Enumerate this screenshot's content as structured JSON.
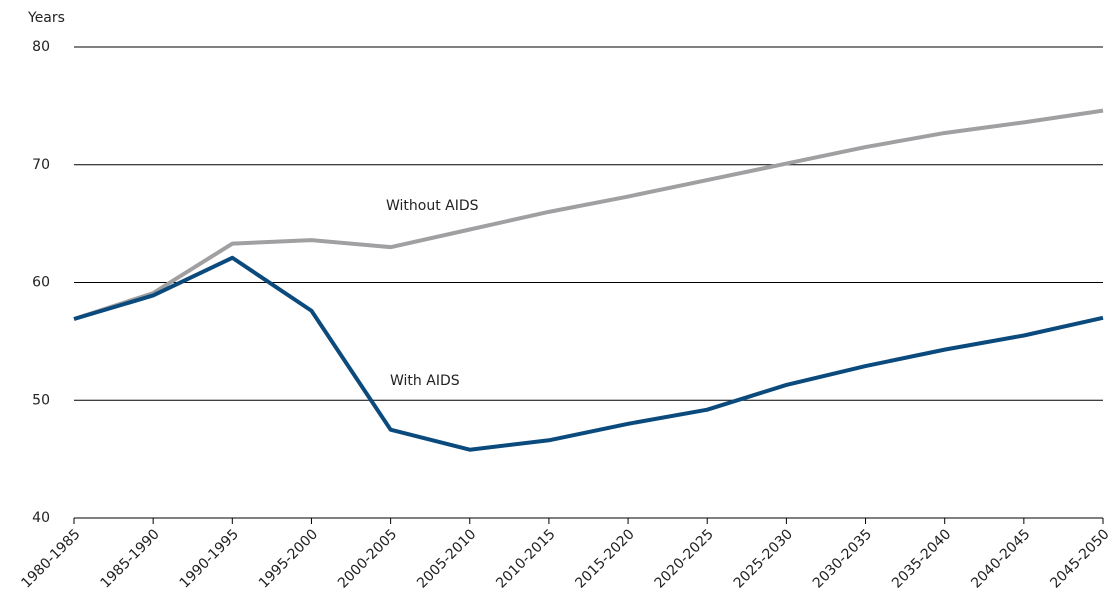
{
  "chart_data": {
    "type": "line",
    "y_label": "Years",
    "categories": [
      "1980-1985",
      "1985-1990",
      "1990-1995",
      "1995-2000",
      "2000-2005",
      "2005-2010",
      "2010-2015",
      "2015-2020",
      "2020-2025",
      "2025-2030",
      "2030-2035",
      "2035-2040",
      "2040-2045",
      "2045-2050"
    ],
    "series": [
      {
        "name": "Without AIDS",
        "color": "#a0a0a3",
        "values": [
          56.9,
          59.1,
          63.3,
          63.6,
          63.0,
          64.5,
          66.0,
          67.3,
          68.7,
          70.1,
          71.5,
          72.7,
          73.6,
          74.6
        ]
      },
      {
        "name": "With AIDS",
        "color": "#0b4a7d",
        "values": [
          56.9,
          58.9,
          62.1,
          57.6,
          47.5,
          45.8,
          46.6,
          48.0,
          49.2,
          51.3,
          52.9,
          54.3,
          55.5,
          57.0
        ]
      }
    ],
    "ylim": [
      40,
      80
    ],
    "yticks": [
      40,
      50,
      60,
      70,
      80
    ],
    "grid": true
  }
}
